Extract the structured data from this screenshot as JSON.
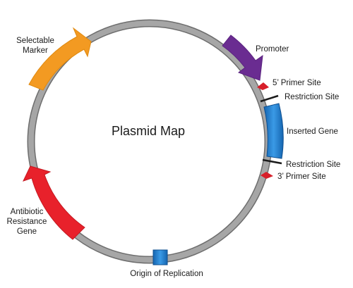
{
  "diagram": {
    "title": "Plasmid Map",
    "features": {
      "promoter": {
        "label": "Promoter",
        "color": "#6a2c91"
      },
      "primer5": {
        "label": "5’ Primer Site",
        "color": "#d71f2a"
      },
      "restriction1": {
        "label": "Restriction Site",
        "color": "#1a1a1a"
      },
      "insert": {
        "label": "Inserted Gene",
        "color": "#1e73c8"
      },
      "restriction2": {
        "label": "Restriction Site",
        "color": "#1a1a1a"
      },
      "primer3": {
        "label": "3’ Primer Site",
        "color": "#d71f2a"
      },
      "origin": {
        "label": "Origin of Replication",
        "color": "#1e73c8"
      },
      "resistance": {
        "label_lines": [
          "Antibiotic",
          "Resistance",
          "Gene"
        ],
        "color": "#e8212b"
      },
      "marker": {
        "label_lines": [
          "Selectable",
          "Marker"
        ],
        "color": "#f39a22"
      }
    },
    "backbone_color": "#a6a6a6"
  }
}
